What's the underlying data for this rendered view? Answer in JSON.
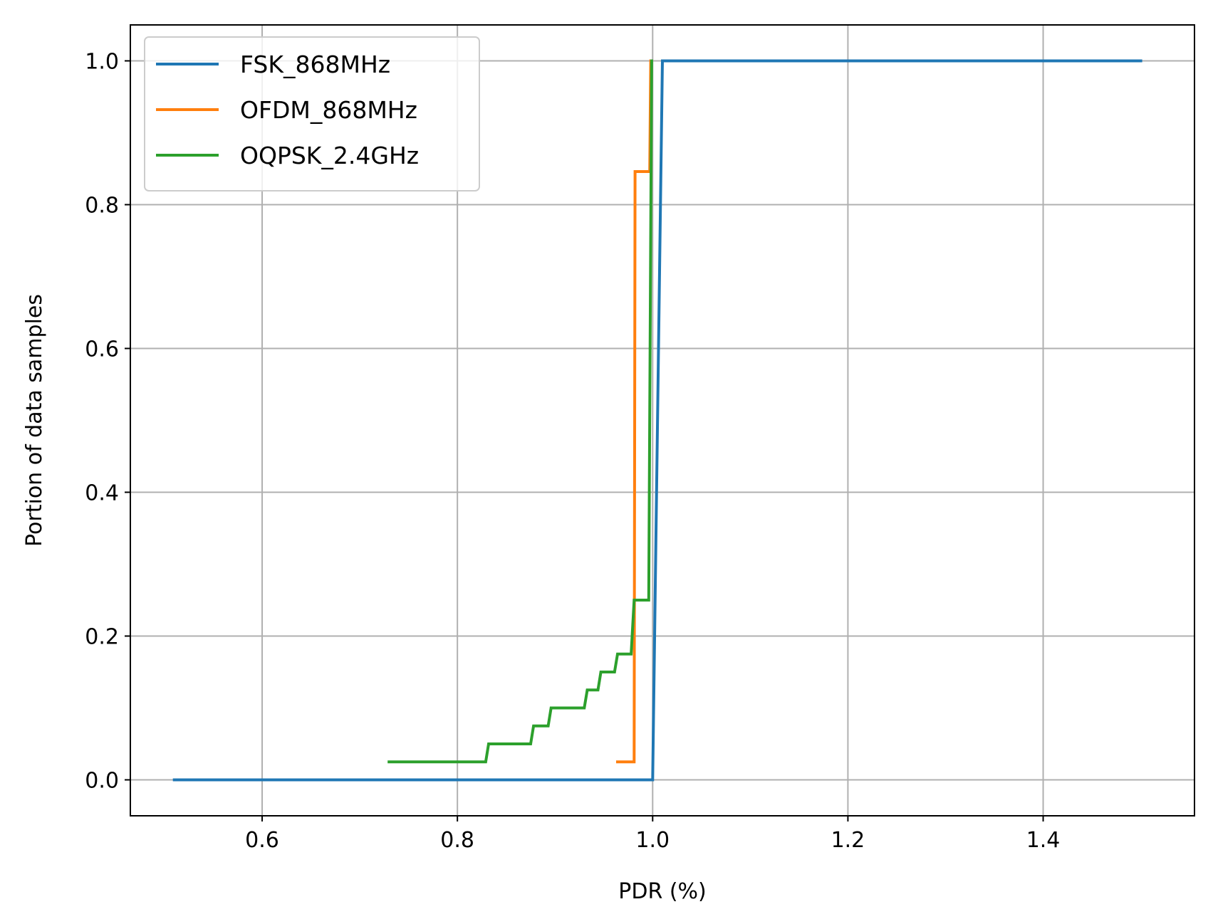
{
  "chart_data": {
    "type": "line",
    "title": "",
    "xlabel": "PDR (%)",
    "ylabel": "Portion of data samples",
    "xlim": [
      0.465,
      1.555
    ],
    "ylim": [
      -0.05,
      1.05
    ],
    "xticks": [
      0.6,
      0.8,
      1.0,
      1.2,
      1.4
    ],
    "xtick_labels": [
      "0.6",
      "0.8",
      "1.0",
      "1.2",
      "1.4"
    ],
    "yticks": [
      0.0,
      0.2,
      0.4,
      0.6,
      0.8,
      1.0
    ],
    "ytick_labels": [
      "0.0",
      "0.2",
      "0.4",
      "0.6",
      "0.8",
      "1.0"
    ],
    "grid": true,
    "legend_position": "top-left",
    "series": [
      {
        "name": "FSK_868MHz",
        "color": "#1f77b4",
        "points": [
          [
            0.51,
            0.0
          ],
          [
            1.0,
            0.0
          ],
          [
            1.01,
            1.0
          ],
          [
            1.5,
            1.0
          ]
        ]
      },
      {
        "name": "OFDM_868MHz",
        "color": "#ff7f0e",
        "points": [
          [
            0.964,
            0.025
          ],
          [
            0.981,
            0.025
          ],
          [
            0.982,
            0.846
          ],
          [
            0.997,
            0.846
          ],
          [
            0.998,
            1.0
          ]
        ]
      },
      {
        "name": "OQPSK_2.4GHz",
        "color": "#2ca02c",
        "points": [
          [
            0.73,
            0.025
          ],
          [
            0.829,
            0.025
          ],
          [
            0.832,
            0.05
          ],
          [
            0.875,
            0.05
          ],
          [
            0.878,
            0.075
          ],
          [
            0.893,
            0.075
          ],
          [
            0.896,
            0.1
          ],
          [
            0.93,
            0.1
          ],
          [
            0.933,
            0.125
          ],
          [
            0.944,
            0.125
          ],
          [
            0.947,
            0.15
          ],
          [
            0.961,
            0.15
          ],
          [
            0.964,
            0.175
          ],
          [
            0.978,
            0.175
          ],
          [
            0.981,
            0.25
          ],
          [
            0.996,
            0.25
          ],
          [
            0.999,
            1.0
          ]
        ]
      }
    ]
  }
}
